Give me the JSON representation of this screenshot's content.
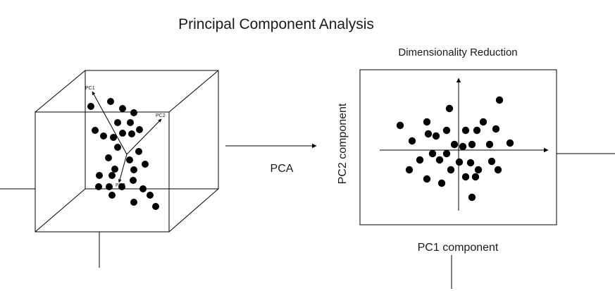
{
  "title": "Principal Component Analysis",
  "arrow_label": "PCA",
  "cube": {
    "axis_labels": {
      "pc1": "PC1",
      "pc2": "PC2",
      "pc3": "PC3"
    }
  },
  "reduced": {
    "title": "Dimensionality Reduction",
    "x_label": "PC1 component",
    "y_label": "PC2 component"
  },
  "colors": {
    "ink": "#000000",
    "text": "#1a1a1a",
    "background": "#ffffff"
  }
}
